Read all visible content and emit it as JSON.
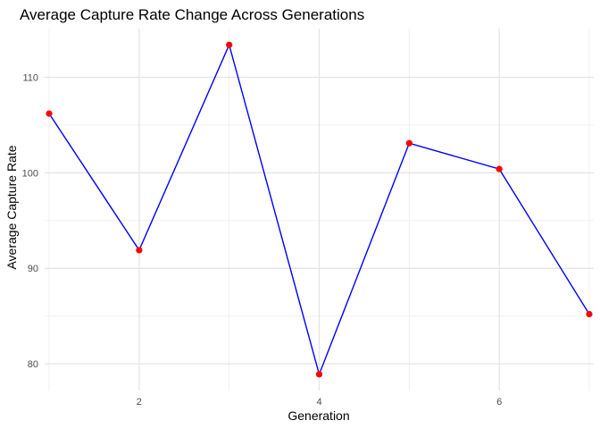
{
  "chart_data": {
    "type": "line",
    "title": "Average Capture Rate Change Across Generations",
    "xlabel": "Generation",
    "ylabel": "Average Capture Rate",
    "x": [
      1,
      2,
      3,
      4,
      5,
      6,
      7
    ],
    "y": [
      106.2,
      91.9,
      113.4,
      78.9,
      103.1,
      100.4,
      85.2
    ],
    "xlim": [
      0.95,
      7.05
    ],
    "ylim": [
      77.2,
      115.1
    ],
    "x_ticks": [
      2,
      4,
      6
    ],
    "x_tick_labels": [
      "2",
      "4",
      "6"
    ],
    "x_minor_ticks": [
      1,
      3,
      5,
      7
    ],
    "y_ticks": [
      80,
      90,
      100,
      110
    ],
    "y_tick_labels": [
      "80",
      "90",
      "100",
      "110"
    ],
    "y_minor_ticks": [
      85,
      95,
      105
    ],
    "grid": true,
    "line_color": "#0000ff",
    "point_color": "#ff0000"
  }
}
